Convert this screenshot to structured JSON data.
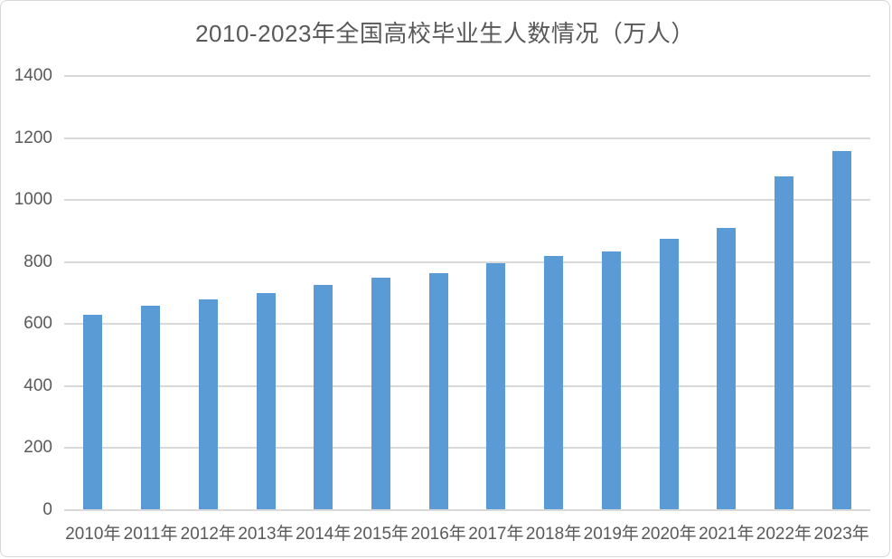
{
  "chart_data": {
    "type": "bar",
    "title": "2010-2023年全国高校毕业生人数情况（万人）",
    "categories": [
      "2010年",
      "2011年",
      "2012年",
      "2013年",
      "2014年",
      "2015年",
      "2016年",
      "2017年",
      "2018年",
      "2019年",
      "2020年",
      "2021年",
      "2022年",
      "2023年"
    ],
    "values": [
      631,
      660,
      680,
      699,
      727,
      749,
      765,
      795,
      820,
      834,
      874,
      909,
      1076,
      1158
    ],
    "xlabel": "",
    "ylabel": "",
    "ylim": [
      0,
      1400
    ],
    "yticks": [
      0,
      200,
      400,
      600,
      800,
      1000,
      1200,
      1400
    ],
    "grid": true,
    "legend_position": "none",
    "bar_color": "#5b9bd5",
    "gridline_color": "#d9d9d9",
    "axis_line_color": "#d9d9d9",
    "text_color": "#595959",
    "background_color": "#ffffff",
    "border_color": "#d7d7d7"
  }
}
